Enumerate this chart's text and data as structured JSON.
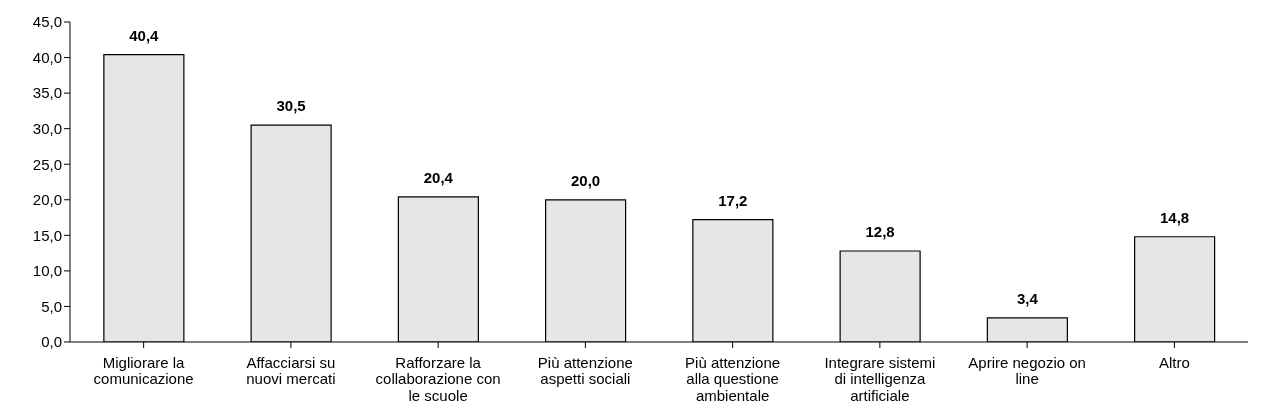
{
  "chart_data": {
    "type": "bar",
    "categories": [
      "Migliorare la comunicazione",
      "Affacciarsi su nuovi mercati",
      "Rafforzare la collaborazione con le scuole",
      "Più attenzione aspetti sociali",
      "Più attenzione alla questione ambientale",
      "Integrare sistemi di intelligenza artificiale",
      "Aprire negozio on line",
      "Altro"
    ],
    "values": [
      40.4,
      30.5,
      20.4,
      20.0,
      17.2,
      12.8,
      3.4,
      14.8
    ],
    "value_labels": [
      "40,4",
      "30,5",
      "20,4",
      "20,0",
      "17,2",
      "12,8",
      "3,4",
      "14,8"
    ],
    "color": "#e6e6e6",
    "ylim": [
      0,
      45
    ],
    "yticks": [
      {
        "value": 0,
        "label": "0,0"
      },
      {
        "value": 5,
        "label": "5,0"
      },
      {
        "value": 10,
        "label": "10,0"
      },
      {
        "value": 15,
        "label": "15,0"
      },
      {
        "value": 20,
        "label": "20,0"
      },
      {
        "value": 25,
        "label": "25,0"
      },
      {
        "value": 30,
        "label": "30,0"
      },
      {
        "value": 35,
        "label": "35,0"
      },
      {
        "value": 40,
        "label": "40,0"
      },
      {
        "value": 45,
        "label": "45,0"
      }
    ],
    "grid": false
  }
}
